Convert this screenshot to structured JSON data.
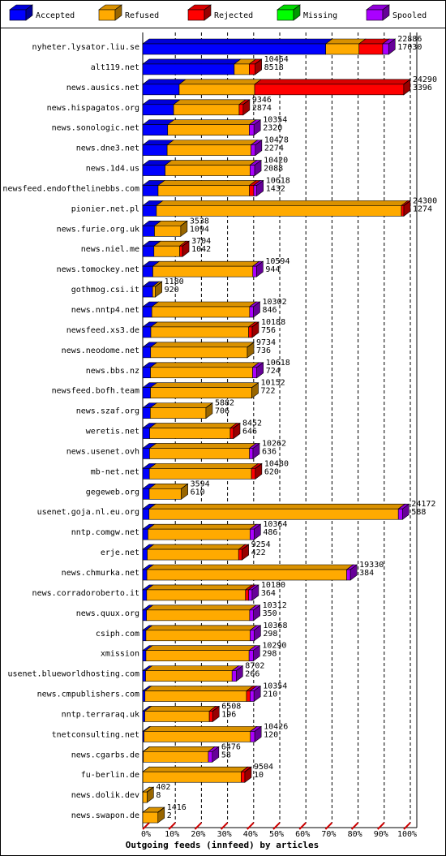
{
  "chart_data": {
    "type": "stacked-bar-3d",
    "title": "Outgoing feeds (innfeed) by articles",
    "categories": [
      "nyheter.lysator.liu.se",
      "alt119.net",
      "news.ausics.net",
      "news.hispagatos.org",
      "news.sonologic.net",
      "news.dne3.net",
      "news.1d4.us",
      "newsfeed.endofthelinebbs.com",
      "pionier.net.pl",
      "news.furie.org.uk",
      "news.niel.me",
      "news.tomockey.net",
      "gothmog.csi.it",
      "news.nntp4.net",
      "newsfeed.xs3.de",
      "news.neodome.net",
      "news.bbs.nz",
      "newsfeed.bofh.team",
      "news.szaf.org",
      "weretis.net",
      "news.usenet.ovh",
      "mb-net.net",
      "gegeweb.org",
      "usenet.goja.nl.eu.org",
      "nntp.comgw.net",
      "erje.net",
      "news.chmurka.net",
      "news.corradoroberto.it",
      "news.quux.org",
      "csiph.com",
      "xmission",
      "usenet.blueworldhosting.com",
      "news.cmpublishers.com",
      "nntp.terraraq.uk",
      "tnetconsulting.net",
      "news.cgarbs.de",
      "fu-berlin.de",
      "news.dolik.dev",
      "news.swapon.de"
    ],
    "offered": [
      22886,
      10464,
      24290,
      9346,
      10354,
      10478,
      10420,
      10618,
      24300,
      3538,
      3704,
      10594,
      1180,
      10302,
      10188,
      9734,
      10618,
      10152,
      5882,
      8452,
      10262,
      10480,
      3594,
      24172,
      10364,
      9254,
      19330,
      10180,
      10312,
      10368,
      10290,
      8702,
      10354,
      6508,
      10426,
      6476,
      9504,
      402,
      1416
    ],
    "series": [
      {
        "name": "Accepted",
        "color": "#0000ff",
        "values": [
          17030,
          8518,
          3396,
          2874,
          2320,
          2274,
          2088,
          1432,
          1274,
          1094,
          1042,
          944,
          920,
          846,
          756,
          736,
          724,
          722,
          706,
          646,
          636,
          620,
          610,
          588,
          486,
          422,
          384,
          364,
          350,
          298,
          298,
          266,
          210,
          196,
          120,
          58,
          10,
          8,
          2
        ]
      },
      {
        "name": "Refused",
        "color": "#ffaa00",
        "values": [
          3100,
          1400,
          7020,
          6100,
          7600,
          7800,
          7900,
          8500,
          22800,
          2444,
          2400,
          9300,
          260,
          9100,
          9100,
          8998,
          9500,
          9430,
          5176,
          7500,
          9300,
          9500,
          2984,
          23200,
          9500,
          8500,
          18600,
          9200,
          9600,
          9700,
          9600,
          8050,
          9450,
          6000,
          9900,
          6050,
          9150,
          394,
          1414
        ]
      },
      {
        "name": "Rejected",
        "color": "#ff0000",
        "values": [
          2200,
          546,
          13874,
          372,
          0,
          0,
          0,
          400,
          226,
          0,
          262,
          0,
          0,
          0,
          332,
          0,
          0,
          0,
          0,
          306,
          0,
          360,
          0,
          0,
          0,
          332,
          0,
          300,
          0,
          0,
          0,
          0,
          330,
          312,
          0,
          0,
          344,
          0,
          0
        ]
      },
      {
        "name": "Missing",
        "color": "#00ff00",
        "values": [
          0,
          0,
          0,
          0,
          0,
          0,
          0,
          0,
          0,
          0,
          0,
          0,
          0,
          0,
          0,
          0,
          0,
          0,
          0,
          0,
          0,
          0,
          0,
          0,
          0,
          0,
          0,
          0,
          0,
          0,
          0,
          0,
          0,
          0,
          0,
          0,
          0,
          0,
          0
        ]
      },
      {
        "name": "Spooled",
        "color": "#aa00ff",
        "values": [
          556,
          0,
          0,
          0,
          434,
          404,
          432,
          286,
          0,
          0,
          0,
          350,
          0,
          356,
          0,
          0,
          394,
          0,
          0,
          0,
          326,
          0,
          0,
          384,
          378,
          0,
          346,
          316,
          362,
          370,
          392,
          386,
          364,
          0,
          406,
          368,
          0,
          0,
          0
        ]
      }
    ],
    "xlim": [
      0,
      24300
    ],
    "xticks": [
      {
        "value": 0,
        "label": "0%"
      },
      {
        "value": 2430,
        "label": "10%"
      },
      {
        "value": 4860,
        "label": "20%"
      },
      {
        "value": 7290,
        "label": "30%"
      },
      {
        "value": 9720,
        "label": "40%"
      },
      {
        "value": 12150,
        "label": "50%"
      },
      {
        "value": 14580,
        "label": "60%"
      },
      {
        "value": 17010,
        "label": "70%"
      },
      {
        "value": 19440,
        "label": "80%"
      },
      {
        "value": 21870,
        "label": "90%"
      },
      {
        "value": 24300,
        "label": "100%"
      }
    ],
    "grid": true
  }
}
